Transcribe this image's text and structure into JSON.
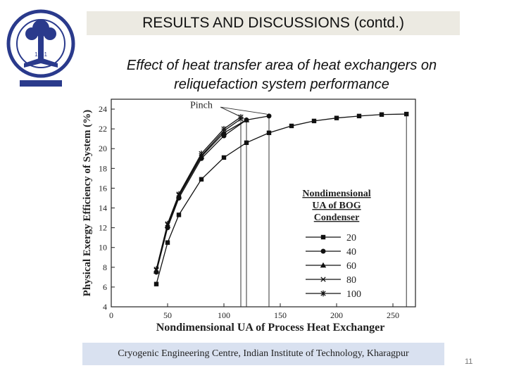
{
  "header": {
    "title": "RESULTS AND DISCUSSIONS (contd.)",
    "subtitle_line1": "Effect of heat transfer area of heat exchangers on",
    "subtitle_line2": "reliquefaction system performance"
  },
  "logo": {
    "icon": "iit-kharagpur-seal-icon",
    "year": "1951",
    "colors": {
      "seal": "#2a3a8c"
    }
  },
  "footer": {
    "text": "Cryogenic Engineering Centre, Indian Institute of Technology, Kharagpur",
    "page_number": "11"
  },
  "chart_data": {
    "type": "line",
    "xlabel": "Nondimensional UA of Process Heat Exchanger",
    "ylabel": "Physical Exergy Efficiency of System (%)",
    "xlim": [
      0,
      270
    ],
    "ylim": [
      4,
      25
    ],
    "xticks": [
      0,
      50,
      100,
      150,
      200,
      250
    ],
    "yticks": [
      4,
      6,
      8,
      10,
      12,
      14,
      16,
      18,
      20,
      22,
      24
    ],
    "legend_title_lines": [
      "Nondimensional",
      "UA  of BOG",
      "Condenser"
    ],
    "legend_position": "right",
    "annotation": {
      "text": "Pinch"
    },
    "pinch_lines_x": [
      115,
      120,
      140,
      262
    ],
    "grid": false,
    "series": [
      {
        "name": "20",
        "marker": "square",
        "x": [
          40,
          50,
          60,
          80,
          100,
          120,
          140,
          160,
          180,
          200,
          220,
          240,
          262
        ],
        "y": [
          6.3,
          10.5,
          13.3,
          16.9,
          19.1,
          20.6,
          21.6,
          22.3,
          22.8,
          23.1,
          23.3,
          23.45,
          23.5
        ]
      },
      {
        "name": "40",
        "marker": "circle",
        "x": [
          40,
          50,
          60,
          80,
          100,
          120,
          140
        ],
        "y": [
          7.5,
          12,
          15,
          19,
          21.3,
          22.9,
          23.3
        ]
      },
      {
        "name": "60",
        "marker": "triangle",
        "x": [
          40,
          50,
          60,
          80,
          100,
          120
        ],
        "y": [
          7.6,
          12.2,
          15.2,
          19.2,
          21.6,
          22.9
        ]
      },
      {
        "name": "80",
        "marker": "x",
        "x": [
          40,
          50,
          60,
          80,
          100,
          115
        ],
        "y": [
          7.7,
          12.3,
          15.3,
          19.3,
          21.8,
          23.0
        ]
      },
      {
        "name": "100",
        "marker": "star",
        "x": [
          40,
          50,
          60,
          80,
          100,
          115
        ],
        "y": [
          7.8,
          12.4,
          15.4,
          19.5,
          22.0,
          23.2
        ]
      }
    ]
  }
}
